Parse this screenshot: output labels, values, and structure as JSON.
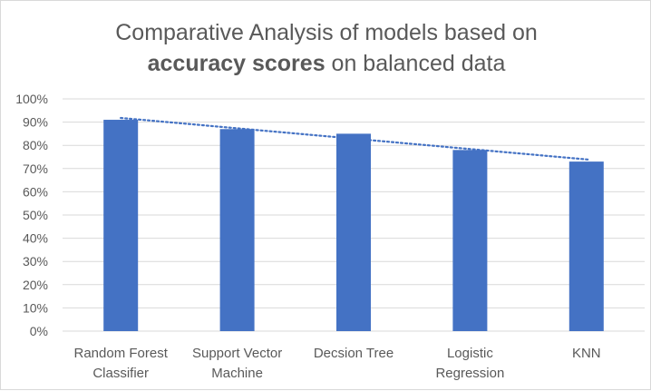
{
  "chart_data": {
    "type": "bar",
    "title_line1": "Comparative Analysis of models based on",
    "title_line2_bold": "accuracy scores",
    "title_line2_rest": " on balanced data",
    "categories": [
      [
        "Random Forest",
        "Classifier"
      ],
      [
        "Support Vector",
        "Machine"
      ],
      [
        "Decsion Tree"
      ],
      [
        "Logistic",
        "Regression"
      ],
      [
        "KNN"
      ]
    ],
    "values": [
      0.91,
      0.87,
      0.85,
      0.78,
      0.73
    ],
    "y_ticks": [
      "0%",
      "10%",
      "20%",
      "30%",
      "40%",
      "50%",
      "60%",
      "70%",
      "80%",
      "90%",
      "100%"
    ],
    "ylim": [
      0,
      1
    ],
    "grid": true,
    "trendline": {
      "type": "linear",
      "style": "dotted",
      "color": "#4472c4"
    },
    "bar_color": "#4472c4",
    "grid_color": "#d9d9d9",
    "text_color": "#595959"
  }
}
